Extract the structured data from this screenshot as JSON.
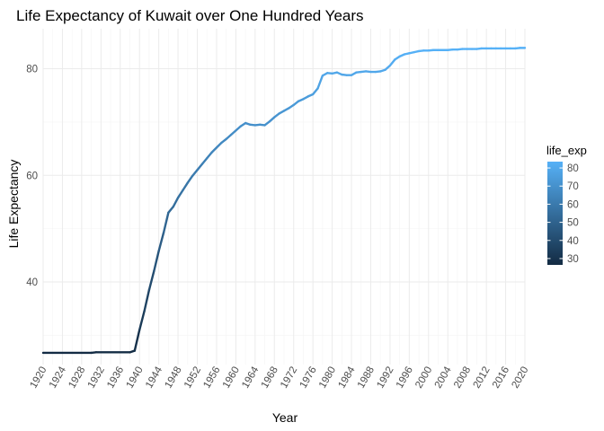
{
  "chart_data": {
    "type": "line",
    "title": "Life Expectancy of Kuwait over One Hundred Years",
    "xlabel": "Year",
    "ylabel": "Life Expectancy",
    "xlim": [
      1920,
      2020
    ],
    "ylim": [
      24.5,
      87.5
    ],
    "x_ticks": [
      1920,
      1924,
      1928,
      1932,
      1936,
      1940,
      1944,
      1948,
      1952,
      1956,
      1960,
      1964,
      1968,
      1972,
      1976,
      1980,
      1984,
      1988,
      1992,
      1996,
      2000,
      2004,
      2008,
      2012,
      2016,
      2020
    ],
    "y_ticks": [
      40,
      60,
      80
    ],
    "y_minor_ticks": [
      30,
      50,
      70
    ],
    "grid": true,
    "legend": {
      "title": "life_exp",
      "position": "right",
      "ticks": [
        30,
        40,
        50,
        60,
        70,
        80
      ],
      "range": [
        26.5,
        83.5
      ],
      "colors": {
        "low": "#132b43",
        "high": "#56b1f7"
      }
    },
    "series": [
      {
        "x": [
          1920,
          1930,
          1931,
          1938,
          1939,
          1940,
          1941,
          1942,
          1943,
          1944,
          1945,
          1946,
          1947,
          1948,
          1949,
          1950,
          1951,
          1952,
          1953,
          1954,
          1955,
          1956,
          1957,
          1958,
          1959,
          1960,
          1961,
          1962,
          1963,
          1964,
          1965,
          1966,
          1967,
          1968,
          1969,
          1970,
          1971,
          1972,
          1973,
          1974,
          1975,
          1976,
          1977,
          1978,
          1979,
          1980,
          1981,
          1982,
          1983,
          1984,
          1985,
          1986,
          1987,
          1988,
          1989,
          1990,
          1991,
          1992,
          1993,
          1994,
          1995,
          1996,
          1997,
          1998,
          1999,
          2000,
          2001,
          2002,
          2003,
          2004,
          2005,
          2006,
          2007,
          2008,
          2009,
          2010,
          2011,
          2012,
          2013,
          2014,
          2015,
          2016,
          2017,
          2018,
          2019,
          2020
        ],
        "values": [
          26.7,
          26.7,
          26.8,
          26.8,
          27.1,
          31.0,
          34.5,
          38.5,
          42.0,
          45.8,
          49.2,
          53.0,
          54.1,
          55.8,
          57.2,
          58.6,
          59.9,
          61.0,
          62.1,
          63.2,
          64.3,
          65.2,
          66.1,
          66.8,
          67.6,
          68.4,
          69.2,
          69.8,
          69.5,
          69.4,
          69.5,
          69.4,
          70.1,
          70.9,
          71.6,
          72.1,
          72.6,
          73.2,
          73.9,
          74.3,
          74.8,
          75.2,
          76.3,
          78.7,
          79.2,
          79.1,
          79.3,
          78.9,
          78.8,
          78.8,
          79.3,
          79.4,
          79.5,
          79.4,
          79.4,
          79.5,
          79.8,
          80.6,
          81.7,
          82.3,
          82.7,
          82.9,
          83.1,
          83.3,
          83.4,
          83.4,
          83.5,
          83.5,
          83.5,
          83.5,
          83.6,
          83.6,
          83.7,
          83.7,
          83.7,
          83.7,
          83.8,
          83.8,
          83.8,
          83.8,
          83.8,
          83.8,
          83.8,
          83.8,
          83.9,
          83.9
        ],
        "color_by": "life_exp"
      }
    ]
  }
}
